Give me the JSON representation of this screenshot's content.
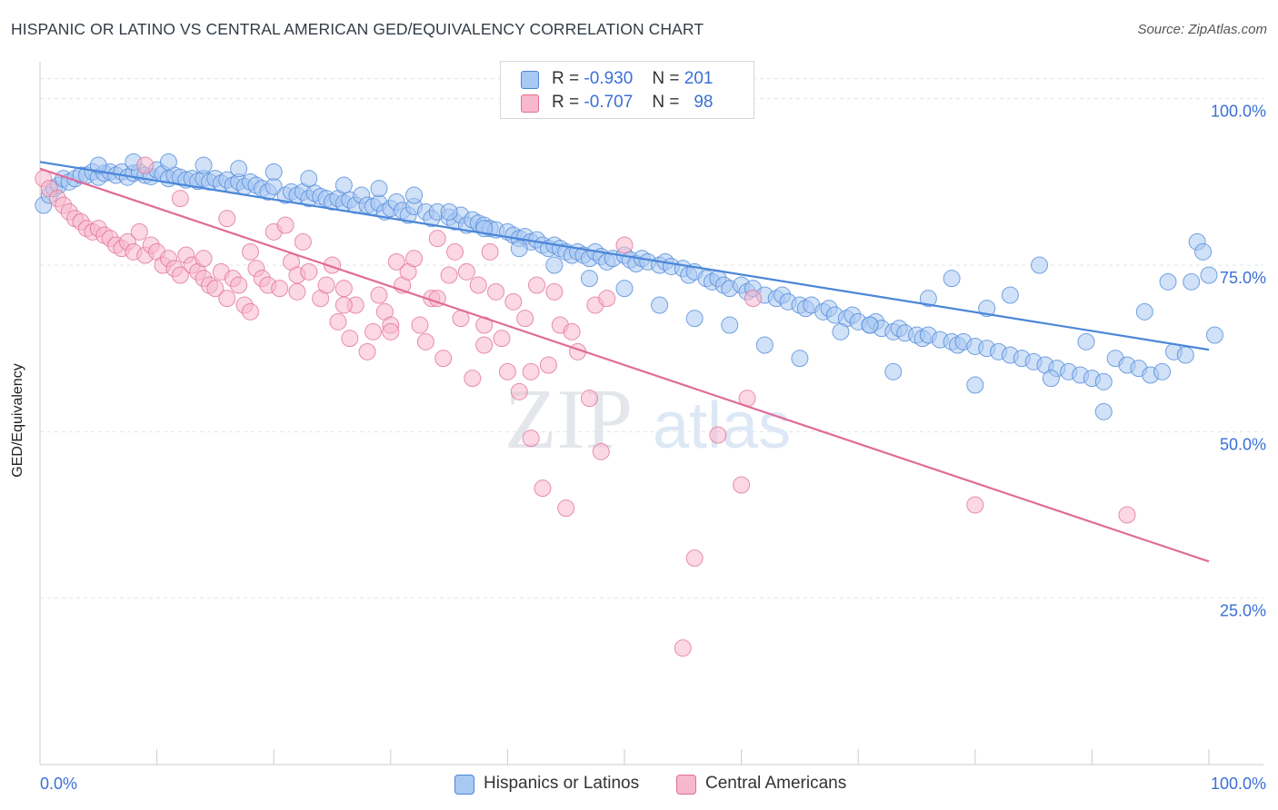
{
  "header": {
    "title": "HISPANIC OR LATINO VS CENTRAL AMERICAN GED/EQUIVALENCY CORRELATION CHART",
    "source": "Source: ZipAtlas.com"
  },
  "watermark": {
    "zip": "ZIP",
    "atlas": "atlas"
  },
  "legend": {
    "rows": [
      {
        "r_label": "R =",
        "r_value": "-0.930",
        "n_label": "N =",
        "n_value": "201",
        "color": "#a9c8f2"
      },
      {
        "r_label": "R =",
        "r_value": "-0.707",
        "n_label": "N =",
        "n_value": "98",
        "color": "#f7b8cc"
      }
    ]
  },
  "bottom_legend": [
    {
      "label": "Hispanics or Latinos",
      "color": "#a9c8f2"
    },
    {
      "label": "Central Americans",
      "color": "#f7b8cc"
    }
  ],
  "chart_data": {
    "type": "scatter",
    "title": "HISPANIC OR LATINO VS CENTRAL AMERICAN GED/EQUIVALENCY CORRELATION CHART",
    "ylabel": "GED/Equivalency",
    "xlabel": "",
    "xlim": [
      0,
      100
    ],
    "ylim": [
      0,
      105
    ],
    "x_tick_labels": [
      "0.0%",
      "100.0%"
    ],
    "y_ticks": [
      25,
      50,
      75,
      100
    ],
    "y_tick_labels": [
      "25.0%",
      "50.0%",
      "75.0%",
      "100.0%"
    ],
    "grid": true,
    "legend_position": "top-center",
    "series": [
      {
        "name": "Hispanics or Latinos",
        "color": "#4a86d8",
        "fill": "#a9c8f2",
        "trend": {
          "x": [
            0,
            100
          ],
          "y": [
            90.5,
            62.3
          ]
        },
        "points": [
          [
            0.3,
            84
          ],
          [
            0.8,
            85.5
          ],
          [
            1.2,
            86.5
          ],
          [
            1.6,
            87
          ],
          [
            2,
            88
          ],
          [
            2.5,
            87.5
          ],
          [
            3,
            88
          ],
          [
            3.5,
            88.5
          ],
          [
            4,
            88.5
          ],
          [
            4.5,
            89
          ],
          [
            5,
            88.2
          ],
          [
            5.5,
            88.8
          ],
          [
            6,
            89
          ],
          [
            6.5,
            88.5
          ],
          [
            7,
            89
          ],
          [
            7.5,
            88.2
          ],
          [
            8,
            88.8
          ],
          [
            8.5,
            89
          ],
          [
            9,
            88.5
          ],
          [
            9.5,
            88.3
          ],
          [
            10,
            89.3
          ],
          [
            10.5,
            88.7
          ],
          [
            11,
            88
          ],
          [
            11.5,
            88.5
          ],
          [
            12,
            88.2
          ],
          [
            12.5,
            87.8
          ],
          [
            13,
            88
          ],
          [
            13.5,
            87.6
          ],
          [
            14,
            88
          ],
          [
            14.5,
            87.5
          ],
          [
            15,
            88
          ],
          [
            15.5,
            87.3
          ],
          [
            16,
            87.8
          ],
          [
            16.5,
            87
          ],
          [
            17,
            87.5
          ],
          [
            17.5,
            86.8
          ],
          [
            18,
            87.5
          ],
          [
            18.5,
            87
          ],
          [
            19,
            86.5
          ],
          [
            19.5,
            86
          ],
          [
            20,
            86.8
          ],
          [
            21,
            85.5
          ],
          [
            21.5,
            86
          ],
          [
            22,
            85.5
          ],
          [
            22.5,
            86
          ],
          [
            23,
            85
          ],
          [
            23.5,
            85.8
          ],
          [
            24,
            85.3
          ],
          [
            24.5,
            85
          ],
          [
            25,
            84.5
          ],
          [
            25.5,
            85
          ],
          [
            26,
            84.3
          ],
          [
            26.5,
            84.8
          ],
          [
            27,
            84
          ],
          [
            27.5,
            85.5
          ],
          [
            28,
            84
          ],
          [
            28.5,
            83.8
          ],
          [
            29,
            84.3
          ],
          [
            29.5,
            83
          ],
          [
            30,
            83.5
          ],
          [
            30.5,
            84.5
          ],
          [
            31,
            83.2
          ],
          [
            31.5,
            82.5
          ],
          [
            32,
            83.8
          ],
          [
            33,
            83
          ],
          [
            33.5,
            82
          ],
          [
            34,
            83
          ],
          [
            35,
            82.2
          ],
          [
            35.5,
            81.5
          ],
          [
            36,
            82.5
          ],
          [
            36.5,
            81
          ],
          [
            37,
            81.8
          ],
          [
            37.5,
            81.3
          ],
          [
            38,
            81
          ],
          [
            38.5,
            80.5
          ],
          [
            39,
            80.3
          ],
          [
            40,
            80
          ],
          [
            40.5,
            79.5
          ],
          [
            41,
            79
          ],
          [
            41.5,
            79.3
          ],
          [
            42,
            78.5
          ],
          [
            42.5,
            78.8
          ],
          [
            43,
            78
          ],
          [
            43.5,
            77.5
          ],
          [
            44,
            78
          ],
          [
            44.5,
            77.5
          ],
          [
            45,
            77
          ],
          [
            45.5,
            76.5
          ],
          [
            46,
            77
          ],
          [
            46.5,
            76.5
          ],
          [
            47,
            76
          ],
          [
            47.5,
            77
          ],
          [
            48,
            76.3
          ],
          [
            48.5,
            75.5
          ],
          [
            49,
            76
          ],
          [
            50,
            76.5
          ],
          [
            50.5,
            75.8
          ],
          [
            51,
            75.2
          ],
          [
            51.5,
            76
          ],
          [
            52,
            75.5
          ],
          [
            53,
            75
          ],
          [
            53.5,
            75.5
          ],
          [
            54,
            74.8
          ],
          [
            55,
            74.5
          ],
          [
            55.5,
            73.5
          ],
          [
            56,
            74
          ],
          [
            57,
            73
          ],
          [
            57.5,
            72.5
          ],
          [
            58,
            73
          ],
          [
            58.5,
            72
          ],
          [
            59,
            71.5
          ],
          [
            60,
            72
          ],
          [
            60.5,
            71
          ],
          [
            61,
            71.5
          ],
          [
            62,
            70.5
          ],
          [
            63,
            70
          ],
          [
            63.5,
            70.5
          ],
          [
            64,
            69.5
          ],
          [
            65,
            69
          ],
          [
            65.5,
            68.5
          ],
          [
            66,
            69
          ],
          [
            67,
            68
          ],
          [
            67.5,
            68.5
          ],
          [
            68,
            67.5
          ],
          [
            69,
            67
          ],
          [
            69.5,
            67.5
          ],
          [
            70,
            66.5
          ],
          [
            71,
            66
          ],
          [
            71.5,
            66.5
          ],
          [
            72,
            65.5
          ],
          [
            73,
            65
          ],
          [
            73.5,
            65.5
          ],
          [
            74,
            64.8
          ],
          [
            75,
            64.5
          ],
          [
            75.5,
            64
          ],
          [
            76,
            64.5
          ],
          [
            77,
            63.8
          ],
          [
            78,
            63.5
          ],
          [
            78.5,
            63
          ],
          [
            79,
            63.5
          ],
          [
            80,
            62.8
          ],
          [
            81,
            62.5
          ],
          [
            82,
            62
          ],
          [
            83,
            61.5
          ],
          [
            84,
            61
          ],
          [
            85,
            60.5
          ],
          [
            86,
            60
          ],
          [
            87,
            59.5
          ],
          [
            88,
            59
          ],
          [
            89,
            58.5
          ],
          [
            90,
            58
          ],
          [
            91,
            57.5
          ],
          [
            92,
            61
          ],
          [
            93,
            60
          ],
          [
            94,
            59.5
          ],
          [
            95,
            58.5
          ],
          [
            96,
            59
          ],
          [
            97,
            62
          ],
          [
            98,
            61.5
          ],
          [
            98.5,
            72.5
          ],
          [
            99,
            78.5
          ],
          [
            99.5,
            77
          ],
          [
            100,
            73.5
          ],
          [
            100.5,
            64.5
          ],
          [
            96.5,
            72.5
          ],
          [
            91,
            53
          ],
          [
            94.5,
            68
          ],
          [
            85.5,
            75
          ],
          [
            83,
            70.5
          ],
          [
            81,
            68.5
          ],
          [
            78,
            73
          ],
          [
            76,
            70
          ],
          [
            71,
            66
          ],
          [
            68.5,
            65
          ],
          [
            73,
            59
          ],
          [
            80,
            57
          ],
          [
            86.5,
            58
          ],
          [
            89.5,
            63.5
          ],
          [
            65,
            61
          ],
          [
            62,
            63
          ],
          [
            59,
            66
          ],
          [
            56,
            67
          ],
          [
            53,
            69
          ],
          [
            50,
            71.5
          ],
          [
            47,
            73
          ],
          [
            44,
            75
          ],
          [
            41,
            77.5
          ],
          [
            38,
            80.5
          ],
          [
            35,
            83
          ],
          [
            32,
            85.5
          ],
          [
            29,
            86.5
          ],
          [
            26,
            87
          ],
          [
            23,
            88
          ],
          [
            20,
            89
          ],
          [
            17,
            89.5
          ],
          [
            14,
            90
          ],
          [
            11,
            90.5
          ],
          [
            8,
            90.5
          ],
          [
            5,
            90
          ]
        ]
      },
      {
        "name": "Central Americans",
        "color": "#e06c97",
        "fill": "#f7b8cc",
        "trend": {
          "x": [
            0,
            100
          ],
          "y": [
            89.5,
            30.5
          ]
        },
        "points": [
          [
            0.3,
            88
          ],
          [
            0.8,
            86.5
          ],
          [
            1.5,
            85
          ],
          [
            2,
            84
          ],
          [
            2.5,
            83
          ],
          [
            3,
            82
          ],
          [
            3.5,
            81.5
          ],
          [
            4,
            80.5
          ],
          [
            4.5,
            80
          ],
          [
            5,
            80.5
          ],
          [
            5.5,
            79.5
          ],
          [
            6,
            79
          ],
          [
            6.5,
            78
          ],
          [
            7,
            77.5
          ],
          [
            7.5,
            78.5
          ],
          [
            8,
            77
          ],
          [
            8.5,
            80
          ],
          [
            9,
            76.5
          ],
          [
            9.5,
            78
          ],
          [
            10,
            77
          ],
          [
            10.5,
            75
          ],
          [
            11,
            76
          ],
          [
            11.5,
            74.5
          ],
          [
            12,
            73.5
          ],
          [
            12.5,
            76.5
          ],
          [
            13,
            75
          ],
          [
            13.5,
            74
          ],
          [
            14,
            73
          ],
          [
            14.5,
            72
          ],
          [
            15,
            71.5
          ],
          [
            15.5,
            74
          ],
          [
            16,
            70
          ],
          [
            16.5,
            73
          ],
          [
            17,
            72
          ],
          [
            17.5,
            69
          ],
          [
            18,
            68
          ],
          [
            18.5,
            74.5
          ],
          [
            19,
            73
          ],
          [
            19.5,
            72
          ],
          [
            20,
            80
          ],
          [
            20.5,
            71.5
          ],
          [
            21,
            81
          ],
          [
            21.5,
            75.5
          ],
          [
            22,
            73.5
          ],
          [
            22.5,
            78.5
          ],
          [
            23,
            74
          ],
          [
            24,
            70
          ],
          [
            24.5,
            72
          ],
          [
            25,
            75
          ],
          [
            25.5,
            66.5
          ],
          [
            26,
            71.5
          ],
          [
            26.5,
            64
          ],
          [
            27,
            69
          ],
          [
            28,
            62
          ],
          [
            28.5,
            65
          ],
          [
            29,
            70.5
          ],
          [
            29.5,
            68
          ],
          [
            30,
            66
          ],
          [
            30.5,
            75.5
          ],
          [
            31,
            72
          ],
          [
            31.5,
            74
          ],
          [
            32,
            76
          ],
          [
            32.5,
            66
          ],
          [
            33,
            63.5
          ],
          [
            33.5,
            70
          ],
          [
            34,
            79
          ],
          [
            34.5,
            61
          ],
          [
            35,
            73.5
          ],
          [
            35.5,
            77
          ],
          [
            36,
            67
          ],
          [
            36.5,
            74
          ],
          [
            37,
            58
          ],
          [
            37.5,
            72
          ],
          [
            38,
            66
          ],
          [
            38.5,
            77
          ],
          [
            39,
            71
          ],
          [
            39.5,
            64
          ],
          [
            40,
            59
          ],
          [
            40.5,
            69.5
          ],
          [
            41,
            56
          ],
          [
            41.5,
            67
          ],
          [
            42,
            49
          ],
          [
            42.5,
            72
          ],
          [
            43,
            41.5
          ],
          [
            43.5,
            60
          ],
          [
            44,
            71
          ],
          [
            44.5,
            66
          ],
          [
            45,
            38.5
          ],
          [
            45.5,
            65
          ],
          [
            46,
            62
          ],
          [
            47,
            55
          ],
          [
            47.5,
            69
          ],
          [
            48,
            47
          ],
          [
            48.5,
            70
          ],
          [
            50,
            78
          ],
          [
            55,
            17.5
          ],
          [
            56,
            31
          ],
          [
            58,
            49.5
          ],
          [
            60,
            42
          ],
          [
            60.5,
            55
          ],
          [
            61,
            70
          ],
          [
            80,
            39
          ],
          [
            93,
            37.5
          ],
          [
            9,
            90
          ],
          [
            12,
            85
          ],
          [
            16,
            82
          ],
          [
            14,
            76
          ],
          [
            18,
            77
          ],
          [
            22,
            71
          ],
          [
            26,
            69
          ],
          [
            30,
            65
          ],
          [
            34,
            70
          ],
          [
            38,
            63
          ],
          [
            42,
            59
          ]
        ]
      }
    ]
  }
}
